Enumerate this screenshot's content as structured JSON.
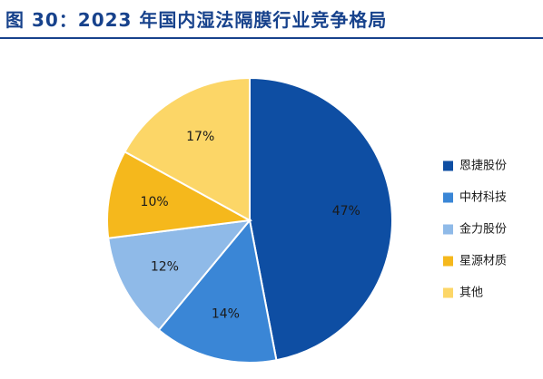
{
  "title": "图 30：2023 年国内湿法隔膜行业竞争格局",
  "chart_data": {
    "type": "pie",
    "title": "",
    "legend_position": "right",
    "start_angle_deg": 0,
    "direction": "clockwise",
    "slices": [
      {
        "label": "恩捷股份",
        "value": 47,
        "value_label": "47%",
        "color": "#0e4ea3"
      },
      {
        "label": "中材科技",
        "value": 14,
        "value_label": "14%",
        "color": "#3a86d6"
      },
      {
        "label": "金力股份",
        "value": 12,
        "value_label": "12%",
        "color": "#8fbae8"
      },
      {
        "label": "星源材质",
        "value": 10,
        "value_label": "10%",
        "color": "#f5b81c"
      },
      {
        "label": "其他",
        "value": 17,
        "value_label": "17%",
        "color": "#fcd667"
      }
    ]
  }
}
